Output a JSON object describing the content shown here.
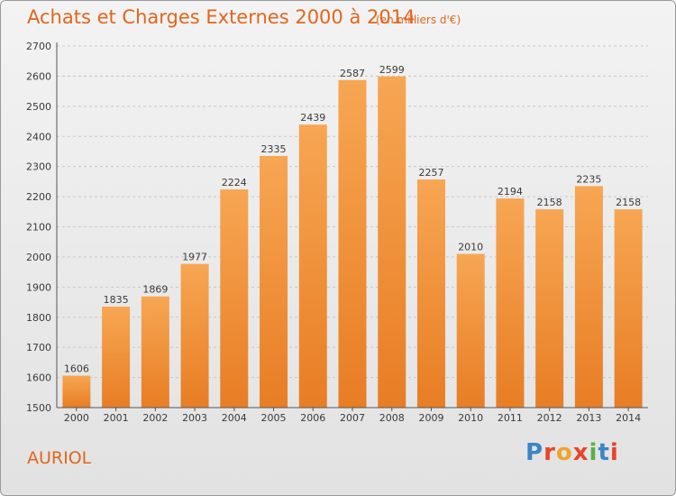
{
  "header": {
    "title": "Achats et Charges Externes 2000 à 2014",
    "subtitle": "(en milliers d'€)"
  },
  "footer": {
    "place": "AURIOL",
    "logo_text": "Proxiti",
    "logo_colors": [
      "#3b86c5",
      "#e8442a",
      "#f0a32c",
      "#e8442a",
      "#5ab04a",
      "#3b86c5",
      "#e8442a"
    ]
  },
  "colors": {
    "accent": "#e2661d",
    "bar_light": "#f7a653",
    "bar_dark": "#e87d24",
    "grid": "#c8c8c8",
    "axis": "#555555"
  },
  "chart_data": {
    "type": "bar",
    "title": "Achats et Charges Externes 2000 à 2014",
    "subtitle": "(en milliers d'€)",
    "xlabel": "",
    "ylabel": "",
    "categories": [
      "2000",
      "2001",
      "2002",
      "2003",
      "2004",
      "2005",
      "2006",
      "2007",
      "2008",
      "2009",
      "2010",
      "2011",
      "2012",
      "2013",
      "2014"
    ],
    "values": [
      1606,
      1835,
      1869,
      1977,
      2224,
      2335,
      2439,
      2587,
      2599,
      2257,
      2010,
      2194,
      2158,
      2235,
      2158
    ],
    "ylim": [
      1500,
      2700
    ],
    "yticks": [
      1500,
      1600,
      1700,
      1800,
      1900,
      2000,
      2100,
      2200,
      2300,
      2400,
      2500,
      2600,
      2700
    ],
    "grid": true,
    "legend": "none"
  }
}
